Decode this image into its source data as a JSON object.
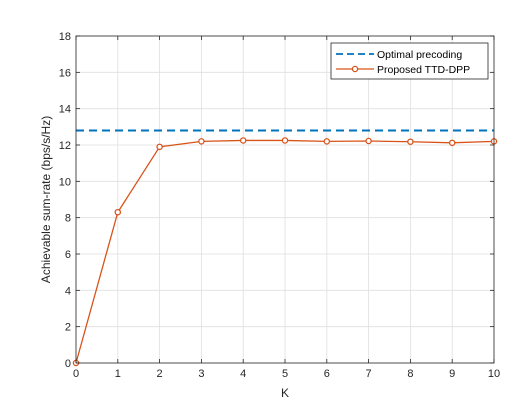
{
  "chart_data": {
    "type": "line",
    "x": [
      0,
      1,
      2,
      3,
      4,
      5,
      6,
      7,
      8,
      9,
      10
    ],
    "xlabel": "K",
    "ylabel": "Achievable sum-rate (bps/s/Hz)",
    "xlim": [
      0,
      10
    ],
    "ylim": [
      0,
      18
    ],
    "xticks": [
      "0",
      "1",
      "2",
      "3",
      "4",
      "5",
      "6",
      "7",
      "8",
      "9",
      "10"
    ],
    "yticks": [
      "0",
      "2",
      "4",
      "6",
      "8",
      "10",
      "12",
      "14",
      "16",
      "18"
    ],
    "grid": true,
    "legend_position": "top-right",
    "series": [
      {
        "name": "Optimal precoding",
        "style": "dashed",
        "color": "#0072bd",
        "values": [
          12.8,
          12.8,
          12.8,
          12.8,
          12.8,
          12.8,
          12.8,
          12.8,
          12.8,
          12.8,
          12.8
        ]
      },
      {
        "name": "Proposed TTD-DPP",
        "style": "solid-circle-markers",
        "color": "#d95319",
        "values": [
          0.0,
          8.3,
          11.9,
          12.2,
          12.25,
          12.25,
          12.2,
          12.22,
          12.18,
          12.12,
          12.2
        ]
      }
    ]
  }
}
